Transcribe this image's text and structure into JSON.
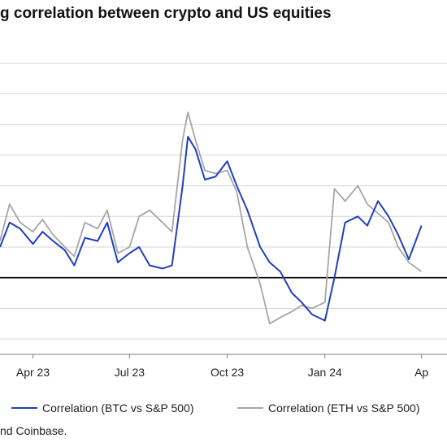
{
  "chart_data": {
    "type": "line",
    "title": "g correlation between crypto and US equities",
    "x_tick_labels": [
      "Apr 23",
      "Jul 23",
      "Oct 23",
      "Jan 24",
      "Ap"
    ],
    "x_tick_dates": [
      "2023-04-01",
      "2023-07-01",
      "2023-10-01",
      "2024-01-01",
      "2024-04-01"
    ],
    "y_tick_values": [
      -0.2,
      -0.1,
      0.0,
      0.1,
      0.2,
      0.3,
      0.4,
      0.5,
      0.6,
      0.7
    ],
    "ylim": [
      -0.25,
      0.8
    ],
    "grid": "horizontal",
    "zero_line": true,
    "legend_placement": "bottom",
    "series": [
      {
        "name": "Correlation (BTC vs S&P 500)",
        "color": "#1f3fbf",
        "x": [
          "2023-03-01",
          "2023-03-10",
          "2023-03-20",
          "2023-04-01",
          "2023-04-10",
          "2023-04-20",
          "2023-05-01",
          "2023-05-10",
          "2023-05-20",
          "2023-06-01",
          "2023-06-10",
          "2023-06-20",
          "2023-07-01",
          "2023-07-10",
          "2023-07-20",
          "2023-08-01",
          "2023-08-10",
          "2023-08-20",
          "2023-08-25",
          "2023-09-01",
          "2023-09-10",
          "2023-09-20",
          "2023-10-01",
          "2023-10-10",
          "2023-10-20",
          "2023-11-01",
          "2023-11-10",
          "2023-11-20",
          "2023-12-01",
          "2023-12-10",
          "2023-12-20",
          "2024-01-01",
          "2024-01-10",
          "2024-01-20",
          "2024-02-01",
          "2024-02-10",
          "2024-02-20",
          "2024-03-01",
          "2024-03-10",
          "2024-03-20",
          "2024-04-01"
        ],
        "values": [
          0.1,
          0.18,
          0.16,
          0.11,
          0.15,
          0.12,
          0.09,
          0.04,
          0.13,
          0.12,
          0.18,
          0.05,
          0.08,
          0.1,
          0.04,
          0.03,
          0.04,
          0.3,
          0.46,
          0.42,
          0.32,
          0.33,
          0.38,
          0.3,
          0.22,
          0.1,
          0.05,
          0.02,
          -0.05,
          -0.08,
          -0.12,
          -0.14,
          0.0,
          0.18,
          0.2,
          0.17,
          0.25,
          0.2,
          0.14,
          0.06,
          0.17
        ]
      },
      {
        "name": "Correlation (ETH vs S&P 500)",
        "color": "#a6a6a6",
        "x": [
          "2023-03-01",
          "2023-03-10",
          "2023-03-20",
          "2023-04-01",
          "2023-04-10",
          "2023-04-20",
          "2023-05-01",
          "2023-05-10",
          "2023-05-20",
          "2023-06-01",
          "2023-06-10",
          "2023-06-20",
          "2023-07-01",
          "2023-07-10",
          "2023-07-20",
          "2023-08-01",
          "2023-08-10",
          "2023-08-20",
          "2023-08-25",
          "2023-09-01",
          "2023-09-10",
          "2023-09-20",
          "2023-10-01",
          "2023-10-10",
          "2023-10-20",
          "2023-11-01",
          "2023-11-10",
          "2023-11-20",
          "2023-12-01",
          "2023-12-10",
          "2023-12-20",
          "2024-01-01",
          "2024-01-10",
          "2024-01-20",
          "2024-02-01",
          "2024-02-10",
          "2024-02-20",
          "2024-03-01",
          "2024-03-10",
          "2024-03-20",
          "2024-04-01"
        ],
        "values": [
          0.12,
          0.24,
          0.18,
          0.15,
          0.19,
          0.14,
          0.1,
          0.07,
          0.18,
          0.16,
          0.22,
          0.08,
          0.1,
          0.2,
          0.22,
          0.18,
          0.15,
          0.45,
          0.54,
          0.45,
          0.35,
          0.34,
          0.35,
          0.28,
          0.1,
          -0.02,
          -0.15,
          -0.13,
          -0.11,
          -0.09,
          -0.1,
          -0.08,
          0.29,
          0.25,
          0.3,
          0.24,
          0.21,
          0.18,
          0.1,
          0.05,
          0.02
        ]
      }
    ],
    "source_text": "nd Coinbase."
  }
}
